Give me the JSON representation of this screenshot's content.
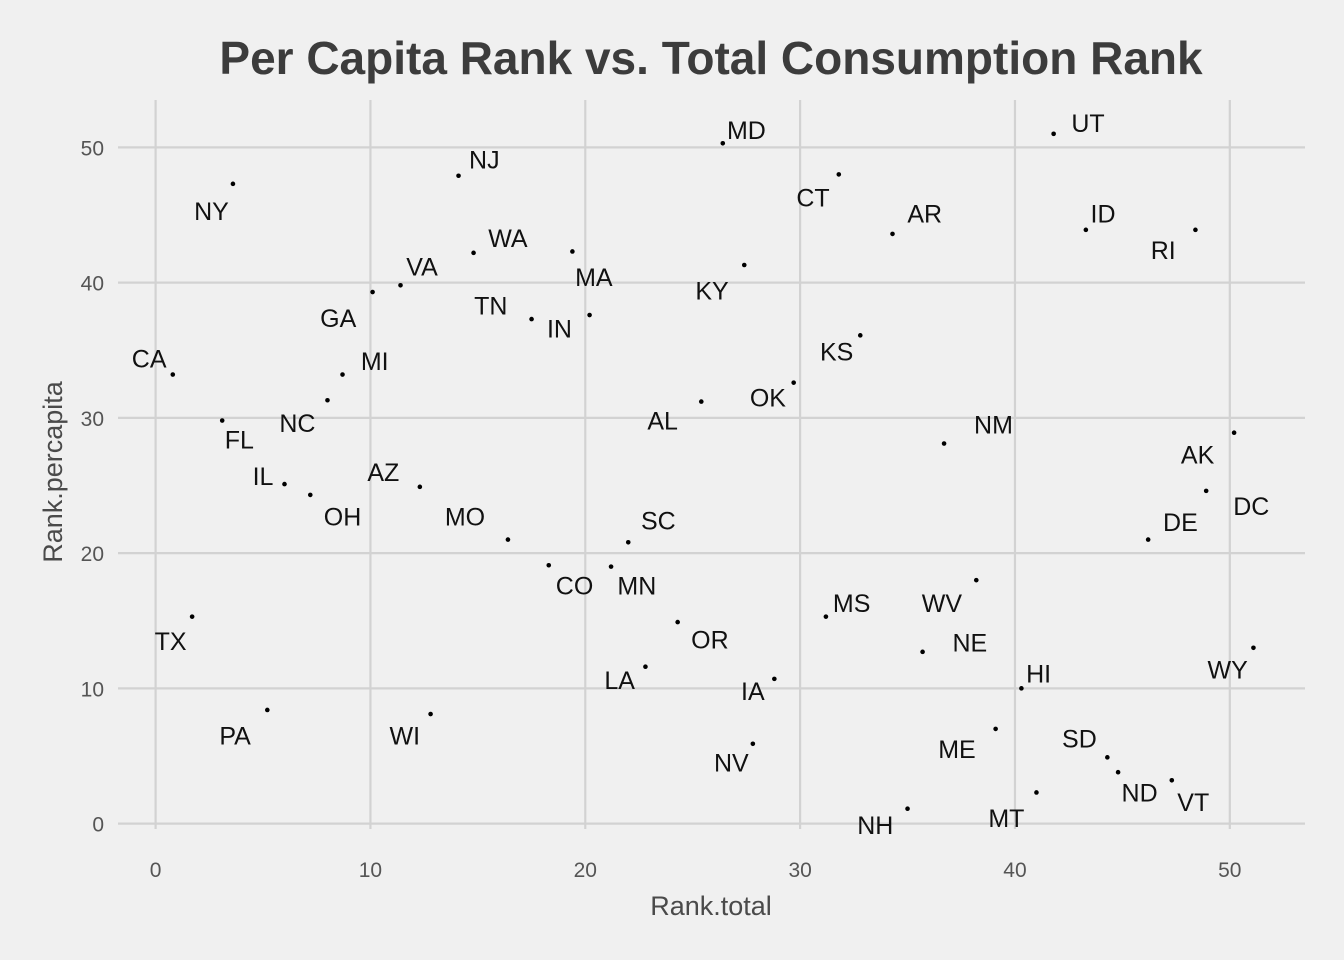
{
  "chart_data": {
    "type": "scatter",
    "title": "Per Capita Rank vs. Total Consumption Rank",
    "xlabel": "Rank.total",
    "ylabel": "Rank.percapita",
    "xlim": [
      -1.75,
      53.5
    ],
    "ylim": [
      -0.4,
      53.5
    ],
    "xticks": [
      0,
      10,
      20,
      30,
      40,
      50
    ],
    "yticks": [
      0,
      10,
      20,
      30,
      40,
      50
    ],
    "grid": true,
    "colors": {
      "background": "#f0f0f0",
      "grid": "#d2d2d2",
      "point": "#000000",
      "text": "#111111"
    },
    "points": [
      {
        "label": "NY",
        "x": 3.6,
        "y": 47.3,
        "lx": 2.6,
        "ly": 45.3
      },
      {
        "label": "NJ",
        "x": 14.1,
        "y": 47.9,
        "lx": 15.3,
        "ly": 49.1
      },
      {
        "label": "MD",
        "x": 26.4,
        "y": 50.3,
        "lx": 27.5,
        "ly": 51.3
      },
      {
        "label": "UT",
        "x": 41.8,
        "y": 51.0,
        "lx": 43.4,
        "ly": 51.8
      },
      {
        "label": "CT",
        "x": 31.8,
        "y": 48.0,
        "lx": 30.6,
        "ly": 46.3
      },
      {
        "label": "AR",
        "x": 34.3,
        "y": 43.6,
        "lx": 35.8,
        "ly": 45.1
      },
      {
        "label": "ID",
        "x": 43.3,
        "y": 43.9,
        "lx": 44.1,
        "ly": 45.1
      },
      {
        "label": "RI",
        "x": 48.4,
        "y": 43.9,
        "lx": 46.9,
        "ly": 42.4
      },
      {
        "label": "WA",
        "x": 14.8,
        "y": 42.2,
        "lx": 16.4,
        "ly": 43.3
      },
      {
        "label": "VA",
        "x": 11.4,
        "y": 39.8,
        "lx": 12.4,
        "ly": 41.2
      },
      {
        "label": "MA",
        "x": 19.4,
        "y": 42.3,
        "lx": 20.4,
        "ly": 40.4
      },
      {
        "label": "KY",
        "x": 27.4,
        "y": 41.3,
        "lx": 25.9,
        "ly": 39.4
      },
      {
        "label": "GA",
        "x": 10.1,
        "y": 39.3,
        "lx": 8.5,
        "ly": 37.4
      },
      {
        "label": "TN",
        "x": 17.5,
        "y": 37.3,
        "lx": 15.6,
        "ly": 38.3
      },
      {
        "label": "IN",
        "x": 20.2,
        "y": 37.6,
        "lx": 18.8,
        "ly": 36.6
      },
      {
        "label": "KS",
        "x": 32.8,
        "y": 36.1,
        "lx": 31.7,
        "ly": 34.9
      },
      {
        "label": "CA",
        "x": 0.8,
        "y": 33.2,
        "lx": -0.3,
        "ly": 34.4
      },
      {
        "label": "MI",
        "x": 8.7,
        "y": 33.2,
        "lx": 10.2,
        "ly": 34.2
      },
      {
        "label": "NC",
        "x": 8.0,
        "y": 31.3,
        "lx": 6.6,
        "ly": 29.6
      },
      {
        "label": "AL",
        "x": 25.4,
        "y": 31.2,
        "lx": 23.6,
        "ly": 29.8
      },
      {
        "label": "OK",
        "x": 29.7,
        "y": 32.6,
        "lx": 28.5,
        "ly": 31.5
      },
      {
        "label": "NM",
        "x": 36.7,
        "y": 28.1,
        "lx": 39.0,
        "ly": 29.5
      },
      {
        "label": "FL",
        "x": 3.1,
        "y": 29.8,
        "lx": 3.9,
        "ly": 28.4
      },
      {
        "label": "AK",
        "x": 50.2,
        "y": 28.9,
        "lx": 48.5,
        "ly": 27.3
      },
      {
        "label": "IL",
        "x": 6.0,
        "y": 25.1,
        "lx": 5.0,
        "ly": 25.7
      },
      {
        "label": "AZ",
        "x": 12.3,
        "y": 24.9,
        "lx": 10.6,
        "ly": 26.0
      },
      {
        "label": "OH",
        "x": 7.2,
        "y": 24.3,
        "lx": 8.7,
        "ly": 22.7
      },
      {
        "label": "DC",
        "x": 48.9,
        "y": 24.6,
        "lx": 51.0,
        "ly": 23.5
      },
      {
        "label": "MO",
        "x": 16.4,
        "y": 21.0,
        "lx": 14.4,
        "ly": 22.7
      },
      {
        "label": "SC",
        "x": 22.0,
        "y": 20.8,
        "lx": 23.4,
        "ly": 22.4
      },
      {
        "label": "DE",
        "x": 46.2,
        "y": 21.0,
        "lx": 47.7,
        "ly": 22.3
      },
      {
        "label": "CO",
        "x": 18.3,
        "y": 19.1,
        "lx": 19.5,
        "ly": 17.6
      },
      {
        "label": "MN",
        "x": 21.2,
        "y": 19.0,
        "lx": 22.4,
        "ly": 17.6
      },
      {
        "label": "WV",
        "x": 38.2,
        "y": 18.0,
        "lx": 36.6,
        "ly": 16.3
      },
      {
        "label": "MS",
        "x": 31.2,
        "y": 15.3,
        "lx": 32.4,
        "ly": 16.3
      },
      {
        "label": "TX",
        "x": 1.7,
        "y": 15.3,
        "lx": 0.7,
        "ly": 13.5
      },
      {
        "label": "OR",
        "x": 24.3,
        "y": 14.9,
        "lx": 25.8,
        "ly": 13.6
      },
      {
        "label": "NE",
        "x": 35.7,
        "y": 12.7,
        "lx": 37.9,
        "ly": 13.4
      },
      {
        "label": "WY",
        "x": 51.1,
        "y": 13.0,
        "lx": 49.9,
        "ly": 11.4
      },
      {
        "label": "LA",
        "x": 22.8,
        "y": 11.6,
        "lx": 21.6,
        "ly": 10.6
      },
      {
        "label": "IA",
        "x": 28.8,
        "y": 10.7,
        "lx": 27.8,
        "ly": 9.8
      },
      {
        "label": "HI",
        "x": 40.3,
        "y": 10.0,
        "lx": 41.1,
        "ly": 11.1
      },
      {
        "label": "PA",
        "x": 5.2,
        "y": 8.4,
        "lx": 3.7,
        "ly": 6.5
      },
      {
        "label": "WI",
        "x": 12.8,
        "y": 8.1,
        "lx": 11.6,
        "ly": 6.5
      },
      {
        "label": "ME",
        "x": 39.1,
        "y": 7.0,
        "lx": 37.3,
        "ly": 5.5
      },
      {
        "label": "SD",
        "x": 44.3,
        "y": 4.9,
        "lx": 43.0,
        "ly": 6.3
      },
      {
        "label": "NV",
        "x": 27.8,
        "y": 5.9,
        "lx": 26.8,
        "ly": 4.5
      },
      {
        "label": "ND",
        "x": 44.8,
        "y": 3.8,
        "lx": 45.8,
        "ly": 2.3
      },
      {
        "label": "VT",
        "x": 47.3,
        "y": 3.2,
        "lx": 48.3,
        "ly": 1.6
      },
      {
        "label": "MT",
        "x": 41.0,
        "y": 2.3,
        "lx": 39.6,
        "ly": 0.4
      },
      {
        "label": "NH",
        "x": 35.0,
        "y": 1.1,
        "lx": 33.5,
        "ly": -0.1
      }
    ]
  }
}
